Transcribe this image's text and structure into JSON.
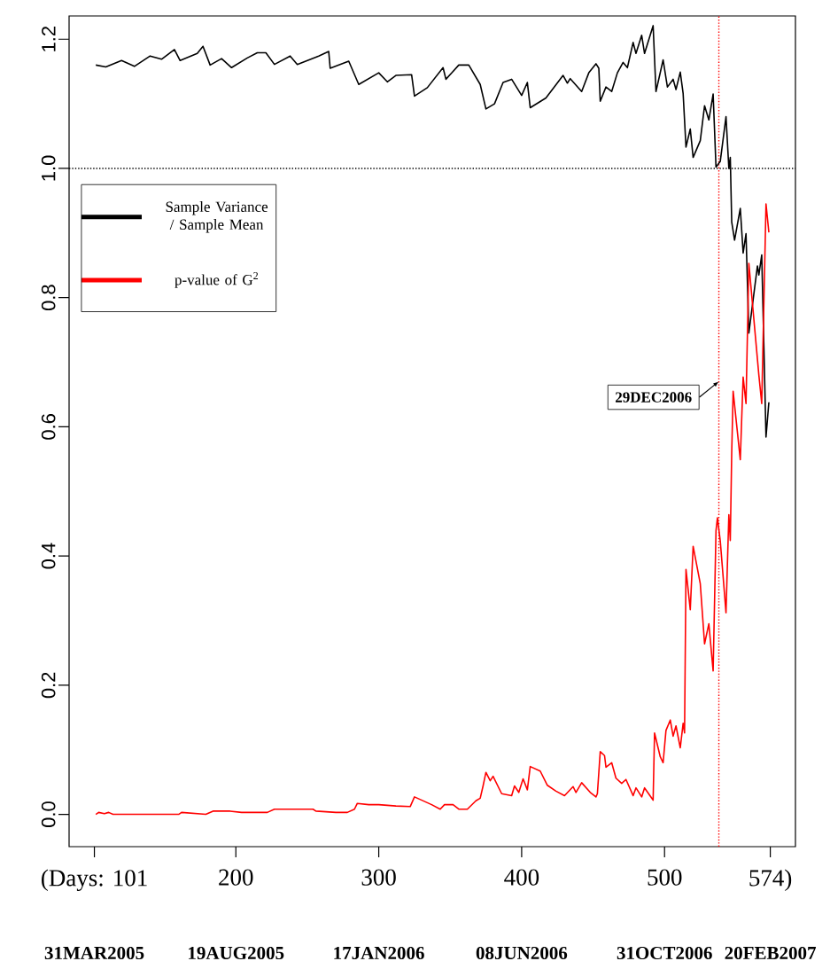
{
  "chart_data": {
    "type": "line",
    "xlim": [
      83.3,
      591.6
    ],
    "ylim": [
      -0.05,
      1.236
    ],
    "xticks": [
      {
        "value": 101,
        "label": "(Days:  101"
      },
      200,
      300,
      400,
      500,
      {
        "value": 574,
        "label": "574)"
      }
    ],
    "yticks": [
      {
        "value": 0,
        "label": "0.0"
      },
      0.2,
      0.4,
      0.6,
      0.8,
      {
        "value": 1,
        "label": "1.0"
      },
      1.2
    ],
    "annotations": [
      "31MAR2005",
      "19AUG2005",
      "17JAN2006",
      "08JUN2006",
      "31OCT2006",
      "20FEB2007"
    ],
    "ref_lines": [
      {
        "axis": "y",
        "value": 1.0,
        "color": "#000000",
        "line_style": "dotted"
      },
      {
        "axis": "x",
        "value": 538,
        "color": "#ff0000",
        "line_style": "dotted",
        "label": "29DEC2006"
      }
    ],
    "legend": "top left",
    "marker": "none",
    "line_style": "solid",
    "series": [
      {
        "name": "Sample Variance / Sample Mean",
        "color": "#000000",
        "x": [
          102,
          109,
          120,
          129,
          140,
          148,
          157,
          161,
          173,
          177,
          182,
          190,
          197,
          208,
          215,
          221,
          227,
          238,
          243,
          258,
          265,
          266,
          279,
          286,
          300,
          306,
          312,
          323,
          325,
          334,
          345,
          347,
          356,
          363,
          371,
          375,
          381,
          387,
          393,
          400,
          404,
          406,
          417,
          429,
          432,
          434,
          442,
          447,
          452,
          454,
          455,
          459,
          463,
          467,
          471,
          474,
          478,
          480,
          484,
          486,
          492,
          494,
          499,
          502,
          506,
          508,
          511,
          513,
          515,
          518,
          520,
          525,
          528,
          531,
          534,
          536,
          539,
          543,
          545,
          546,
          547,
          549,
          553,
          555,
          557,
          559,
          565,
          566,
          568,
          571,
          573
        ],
        "values": [
          1.16,
          1.157,
          1.167,
          1.158,
          1.174,
          1.169,
          1.184,
          1.167,
          1.178,
          1.189,
          1.16,
          1.17,
          1.156,
          1.171,
          1.179,
          1.179,
          1.161,
          1.174,
          1.161,
          1.174,
          1.181,
          1.155,
          1.166,
          1.13,
          1.148,
          1.134,
          1.144,
          1.145,
          1.112,
          1.125,
          1.156,
          1.138,
          1.16,
          1.16,
          1.13,
          1.092,
          1.1,
          1.133,
          1.138,
          1.113,
          1.133,
          1.094,
          1.109,
          1.144,
          1.132,
          1.139,
          1.119,
          1.148,
          1.162,
          1.155,
          1.104,
          1.126,
          1.119,
          1.148,
          1.164,
          1.156,
          1.195,
          1.178,
          1.206,
          1.178,
          1.221,
          1.119,
          1.168,
          1.126,
          1.138,
          1.122,
          1.149,
          1.116,
          1.033,
          1.061,
          1.017,
          1.043,
          1.097,
          1.075,
          1.115,
          1.002,
          1.011,
          1.08,
          1.0,
          1.017,
          0.917,
          0.889,
          0.938,
          0.869,
          0.899,
          0.745,
          0.849,
          0.835,
          0.866,
          0.584,
          0.638
        ]
      },
      {
        "name": "p-value of G$^{2}$",
        "color": "#ff0000",
        "x": [
          102,
          104,
          108,
          111,
          114,
          160,
          162,
          179,
          184,
          196,
          204,
          222,
          227,
          244,
          254,
          256,
          270,
          278,
          283,
          285,
          293,
          300,
          312,
          322,
          325,
          331,
          337,
          343,
          346,
          352,
          356,
          362,
          368,
          371,
          373,
          375,
          378,
          380,
          386,
          393,
          395,
          398,
          401,
          404,
          406,
          413,
          418,
          424,
          430,
          436,
          438,
          442,
          448,
          452,
          453,
          455,
          458,
          459,
          463,
          466,
          470,
          473,
          478,
          480,
          484,
          486,
          492,
          493,
          497,
          499,
          501,
          504,
          506,
          508,
          511,
          513,
          514,
          515,
          518,
          520,
          525,
          528,
          531,
          534,
          536,
          537,
          539,
          543,
          545,
          546,
          547,
          548,
          553,
          555,
          557,
          559,
          566,
          568,
          571,
          573
        ],
        "values": [
          0.0,
          0.003,
          0.001,
          0.003,
          0.0,
          0.0,
          0.003,
          0.0,
          0.005,
          0.005,
          0.003,
          0.003,
          0.008,
          0.008,
          0.008,
          0.005,
          0.003,
          0.003,
          0.008,
          0.017,
          0.015,
          0.015,
          0.013,
          0.012,
          0.027,
          0.021,
          0.015,
          0.008,
          0.015,
          0.015,
          0.008,
          0.008,
          0.021,
          0.025,
          0.044,
          0.065,
          0.052,
          0.059,
          0.032,
          0.029,
          0.044,
          0.034,
          0.055,
          0.038,
          0.074,
          0.067,
          0.045,
          0.036,
          0.029,
          0.043,
          0.034,
          0.049,
          0.034,
          0.027,
          0.032,
          0.097,
          0.091,
          0.073,
          0.08,
          0.056,
          0.048,
          0.054,
          0.029,
          0.041,
          0.027,
          0.041,
          0.022,
          0.126,
          0.089,
          0.08,
          0.13,
          0.146,
          0.121,
          0.137,
          0.103,
          0.141,
          0.126,
          0.379,
          0.317,
          0.415,
          0.357,
          0.264,
          0.295,
          0.222,
          0.439,
          0.459,
          0.423,
          0.312,
          0.464,
          0.424,
          0.56,
          0.655,
          0.549,
          0.677,
          0.636,
          0.853,
          0.68,
          0.636,
          0.945,
          0.901
        ]
      }
    ]
  }
}
